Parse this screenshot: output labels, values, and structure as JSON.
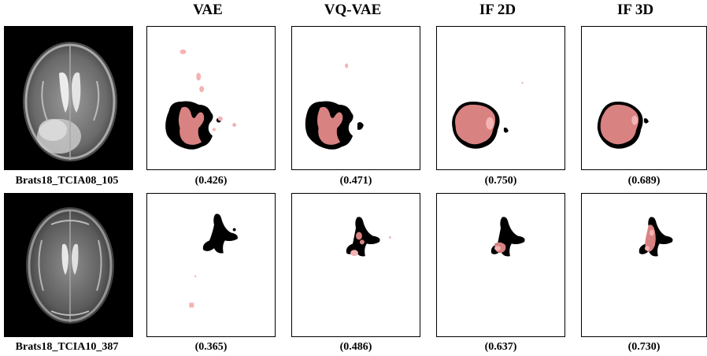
{
  "columns": [
    "VAE",
    "VQ-VAE",
    "IF 2D",
    "IF 3D"
  ],
  "rows": [
    {
      "case": "Brats18_TCIA08_105",
      "scores": [
        "(0.426)",
        "(0.471)",
        "(0.750)",
        "(0.689)"
      ]
    },
    {
      "case": "Brats18_TCIA10_387",
      "scores": [
        "(0.365)",
        "(0.486)",
        "(0.637)",
        "(0.730)"
      ]
    }
  ],
  "colors": {
    "ground_truth": "#000000",
    "prediction": "#d98282",
    "prediction_light": "#f3b3b3"
  }
}
